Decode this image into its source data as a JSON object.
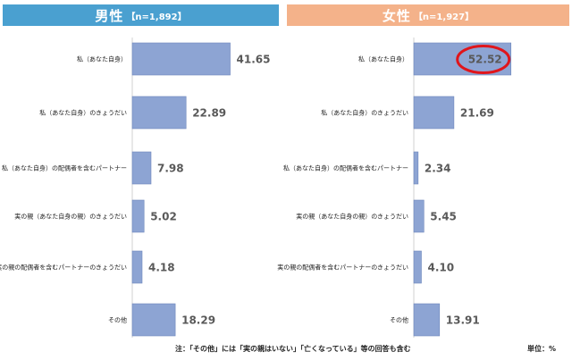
{
  "panels": [
    {
      "gender": "男性",
      "n": "【n=1,892】"
    },
    {
      "gender": "女性",
      "n": "【n=1,927】"
    }
  ],
  "chart_data": [
    {
      "type": "bar",
      "orientation": "horizontal",
      "title": "男性【n=1,892】",
      "categories": [
        "私（あなた自身）",
        "私（あなた自身）のきょうだい",
        "私（あなた自身）の配偶者を含むパートナー",
        "実の親（あなた自身の親）のきょうだい",
        "実の親の配偶者を含むパートナーのきょうだい",
        "その他"
      ],
      "values": [
        41.65,
        22.89,
        7.98,
        5.02,
        4.18,
        18.29
      ],
      "value_labels": [
        "41.65",
        "22.89",
        "7.98",
        "5.02",
        "4.18",
        "18.29"
      ],
      "grid": false
    },
    {
      "type": "bar",
      "orientation": "horizontal",
      "title": "女性【n=1,927】",
      "categories": [
        "私（あなた自身）",
        "私（あなた自身）のきょうだい",
        "私（あなた自身）の配偶者を含むパートナー",
        "実の親（あなた自身の親）のきょうだい",
        "実の親の配偶者を含むパートナーのきょうだい",
        "その他"
      ],
      "values": [
        52.52,
        21.69,
        2.34,
        5.45,
        4.1,
        13.91
      ],
      "value_labels": [
        "52.52",
        "21.69",
        "2.34",
        "5.45",
        "4.10",
        "13.91"
      ],
      "highlight": {
        "category_index": 0,
        "color": "#e0151b"
      },
      "grid": false
    }
  ],
  "colors": {
    "bar": "#8da4d3",
    "male_header": "#4aa0d0",
    "female_header": "#f4b28a",
    "highlight": "#e0151b"
  },
  "footer": {
    "note": "注：「その他」には「実の親はいない」「亡くなっている」等の回答も含む",
    "unit": "単位：%"
  }
}
